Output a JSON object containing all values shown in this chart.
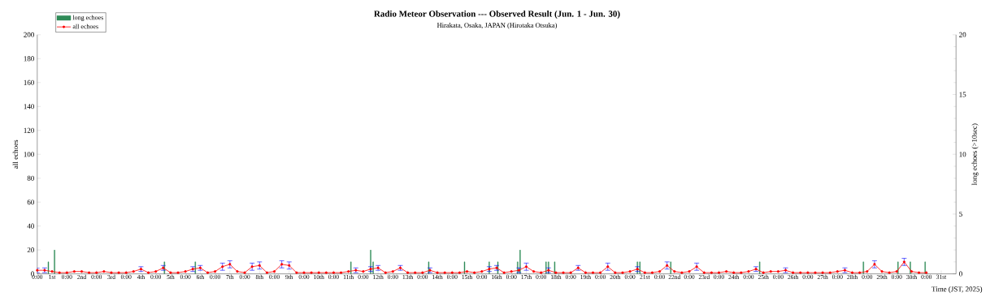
{
  "chart_data": {
    "type": "line",
    "title": "Radio Meteor Observation --- Observed Result (Jun. 1 - Jun. 30)",
    "subtitle": "Hirakata, Osaka, JAPAN (Hirotaka Otsuka)",
    "xlabel": "Time (JST, 2025)",
    "ylabel": "all echoes",
    "y2label": "long echoes (>10sec)",
    "xlim": [
      "2025-06-01T00:00",
      "2025-07-02T00:00"
    ],
    "ylim": [
      0,
      200
    ],
    "y2lim": [
      0,
      20
    ],
    "xticks": [
      {
        "value": "2025-06-01T00:00",
        "label": "0:00"
      },
      {
        "value": "2025-06-01T12:00",
        "label": "1st"
      },
      {
        "value": "2025-06-02T00:00",
        "label": "0:00"
      },
      {
        "value": "2025-06-02T12:00",
        "label": "2nd"
      },
      {
        "value": "2025-06-03T00:00",
        "label": "0:00"
      },
      {
        "value": "2025-06-03T12:00",
        "label": "3rd"
      },
      {
        "value": "2025-06-04T00:00",
        "label": "0:00"
      },
      {
        "value": "2025-06-04T12:00",
        "label": "4th"
      },
      {
        "value": "2025-06-05T00:00",
        "label": "0:00"
      },
      {
        "value": "2025-06-05T12:00",
        "label": "5th"
      },
      {
        "value": "2025-06-06T00:00",
        "label": "0:00"
      },
      {
        "value": "2025-06-06T12:00",
        "label": "6th"
      },
      {
        "value": "2025-06-07T00:00",
        "label": "0:00"
      },
      {
        "value": "2025-06-07T12:00",
        "label": "7th"
      },
      {
        "value": "2025-06-08T00:00",
        "label": "0:00"
      },
      {
        "value": "2025-06-08T12:00",
        "label": "8th"
      },
      {
        "value": "2025-06-09T00:00",
        "label": "0:00"
      },
      {
        "value": "2025-06-09T12:00",
        "label": "9th"
      },
      {
        "value": "2025-06-10T00:00",
        "label": "0:00"
      },
      {
        "value": "2025-06-10T12:00",
        "label": "10th"
      },
      {
        "value": "2025-06-11T00:00",
        "label": "0:00"
      },
      {
        "value": "2025-06-11T12:00",
        "label": "11th"
      },
      {
        "value": "2025-06-12T00:00",
        "label": "0:00"
      },
      {
        "value": "2025-06-12T12:00",
        "label": "12th"
      },
      {
        "value": "2025-06-13T00:00",
        "label": "0:00"
      },
      {
        "value": "2025-06-13T12:00",
        "label": "13th"
      },
      {
        "value": "2025-06-14T00:00",
        "label": "0:00"
      },
      {
        "value": "2025-06-14T12:00",
        "label": "14th"
      },
      {
        "value": "2025-06-15T00:00",
        "label": "0:00"
      },
      {
        "value": "2025-06-15T12:00",
        "label": "15th"
      },
      {
        "value": "2025-06-16T00:00",
        "label": "0:00"
      },
      {
        "value": "2025-06-16T12:00",
        "label": "16th"
      },
      {
        "value": "2025-06-17T00:00",
        "label": "0:00"
      },
      {
        "value": "2025-06-17T12:00",
        "label": "17th"
      },
      {
        "value": "2025-06-18T00:00",
        "label": "0:00"
      },
      {
        "value": "2025-06-18T12:00",
        "label": "18th"
      },
      {
        "value": "2025-06-19T00:00",
        "label": "0:00"
      },
      {
        "value": "2025-06-19T12:00",
        "label": "19th"
      },
      {
        "value": "2025-06-20T00:00",
        "label": "0:00"
      },
      {
        "value": "2025-06-20T12:00",
        "label": "20th"
      },
      {
        "value": "2025-06-21T00:00",
        "label": "0:00"
      },
      {
        "value": "2025-06-21T12:00",
        "label": "21st"
      },
      {
        "value": "2025-06-22T00:00",
        "label": "0:00"
      },
      {
        "value": "2025-06-22T12:00",
        "label": "22nd"
      },
      {
        "value": "2025-06-23T00:00",
        "label": "0:00"
      },
      {
        "value": "2025-06-23T12:00",
        "label": "23rd"
      },
      {
        "value": "2025-06-24T00:00",
        "label": "0:00"
      },
      {
        "value": "2025-06-24T12:00",
        "label": "24th"
      },
      {
        "value": "2025-06-25T00:00",
        "label": "0:00"
      },
      {
        "value": "2025-06-25T12:00",
        "label": "25th"
      },
      {
        "value": "2025-06-26T00:00",
        "label": "0:00"
      },
      {
        "value": "2025-06-26T12:00",
        "label": "26th"
      },
      {
        "value": "2025-06-27T00:00",
        "label": "0:00"
      },
      {
        "value": "2025-06-27T12:00",
        "label": "27th"
      },
      {
        "value": "2025-06-28T00:00",
        "label": "0:00"
      },
      {
        "value": "2025-06-28T12:00",
        "label": "28th"
      },
      {
        "value": "2025-06-29T00:00",
        "label": "0:00"
      },
      {
        "value": "2025-06-29T12:00",
        "label": "29th"
      },
      {
        "value": "2025-06-30T00:00",
        "label": "0:00"
      },
      {
        "value": "2025-06-30T12:00",
        "label": "30th"
      },
      {
        "value": "2025-07-01T00:00",
        "label": "0:00"
      },
      {
        "value": "2025-07-01T12:00",
        "label": "31st"
      }
    ],
    "yticks": [
      0,
      20,
      40,
      60,
      80,
      100,
      120,
      140,
      160,
      180,
      200
    ],
    "y2ticks": [
      0,
      5,
      10,
      15,
      20
    ],
    "legend": "top left",
    "grid": false,
    "x": [
      "2025-06-01T00:00",
      "2025-06-01T06:00",
      "2025-06-01T12:00",
      "2025-06-01T18:00",
      "2025-06-02T00:00",
      "2025-06-02T06:00",
      "2025-06-02T12:00",
      "2025-06-02T18:00",
      "2025-06-03T00:00",
      "2025-06-03T06:00",
      "2025-06-03T12:00",
      "2025-06-03T18:00",
      "2025-06-04T00:00",
      "2025-06-04T06:00",
      "2025-06-04T12:00",
      "2025-06-04T18:00",
      "2025-06-05T00:00",
      "2025-06-05T06:00",
      "2025-06-05T12:00",
      "2025-06-05T18:00",
      "2025-06-06T00:00",
      "2025-06-06T06:00",
      "2025-06-06T12:00",
      "2025-06-06T18:00",
      "2025-06-07T00:00",
      "2025-06-07T06:00",
      "2025-06-07T12:00",
      "2025-06-07T18:00",
      "2025-06-08T00:00",
      "2025-06-08T06:00",
      "2025-06-08T12:00",
      "2025-06-08T18:00",
      "2025-06-09T00:00",
      "2025-06-09T06:00",
      "2025-06-09T12:00",
      "2025-06-09T18:00",
      "2025-06-10T00:00",
      "2025-06-10T06:00",
      "2025-06-10T12:00",
      "2025-06-10T18:00",
      "2025-06-11T00:00",
      "2025-06-11T06:00",
      "2025-06-11T12:00",
      "2025-06-11T18:00",
      "2025-06-12T00:00",
      "2025-06-12T06:00",
      "2025-06-12T12:00",
      "2025-06-12T18:00",
      "2025-06-13T00:00",
      "2025-06-13T06:00",
      "2025-06-13T12:00",
      "2025-06-13T18:00",
      "2025-06-14T00:00",
      "2025-06-14T06:00",
      "2025-06-14T12:00",
      "2025-06-14T18:00",
      "2025-06-15T00:00",
      "2025-06-15T06:00",
      "2025-06-15T12:00",
      "2025-06-15T18:00",
      "2025-06-16T00:00",
      "2025-06-16T06:00",
      "2025-06-16T12:00",
      "2025-06-16T18:00",
      "2025-06-17T00:00",
      "2025-06-17T06:00",
      "2025-06-17T12:00",
      "2025-06-17T18:00",
      "2025-06-18T00:00",
      "2025-06-18T06:00",
      "2025-06-18T12:00",
      "2025-06-18T18:00",
      "2025-06-19T00:00",
      "2025-06-19T06:00",
      "2025-06-19T12:00",
      "2025-06-19T18:00",
      "2025-06-20T00:00",
      "2025-06-20T06:00",
      "2025-06-20T12:00",
      "2025-06-20T18:00",
      "2025-06-21T00:00",
      "2025-06-21T06:00",
      "2025-06-21T12:00",
      "2025-06-21T18:00",
      "2025-06-22T00:00",
      "2025-06-22T06:00",
      "2025-06-22T12:00",
      "2025-06-22T18:00",
      "2025-06-23T00:00",
      "2025-06-23T06:00",
      "2025-06-23T12:00",
      "2025-06-23T18:00",
      "2025-06-24T00:00",
      "2025-06-24T06:00",
      "2025-06-24T12:00",
      "2025-06-24T18:00",
      "2025-06-25T00:00",
      "2025-06-25T06:00",
      "2025-06-25T12:00",
      "2025-06-25T18:00",
      "2025-06-26T00:00",
      "2025-06-26T06:00",
      "2025-06-26T12:00",
      "2025-06-26T18:00",
      "2025-06-27T00:00",
      "2025-06-27T06:00",
      "2025-06-27T12:00",
      "2025-06-27T18:00",
      "2025-06-28T00:00",
      "2025-06-28T06:00",
      "2025-06-28T12:00",
      "2025-06-28T18:00",
      "2025-06-29T00:00",
      "2025-06-29T06:00",
      "2025-06-29T12:00",
      "2025-06-29T18:00",
      "2025-06-30T00:00",
      "2025-06-30T06:00",
      "2025-06-30T12:00",
      "2025-06-30T18:00",
      "2025-07-01T00:00"
    ],
    "series": [
      {
        "name": "long echoes",
        "type": "bar",
        "axis": "y2",
        "color": "#2e8b57",
        "x": [
          "2025-06-01T09:00",
          "2025-06-01T14:00",
          "2025-06-05T07:00",
          "2025-06-06T08:00",
          "2025-06-11T14:00",
          "2025-06-12T06:00",
          "2025-06-12T08:00",
          "2025-06-14T05:00",
          "2025-06-15T10:00",
          "2025-06-16T06:00",
          "2025-06-16T13:00",
          "2025-06-17T05:00",
          "2025-06-17T07:00",
          "2025-06-18T04:00",
          "2025-06-18T06:00",
          "2025-06-18T11:00",
          "2025-06-21T06:00",
          "2025-06-21T08:00",
          "2025-06-22T09:00",
          "2025-06-25T09:00",
          "2025-06-28T21:00",
          "2025-06-30T01:00",
          "2025-06-30T11:00",
          "2025-06-30T23:00"
        ],
        "values": [
          1,
          2,
          1,
          1,
          1,
          2,
          1,
          1,
          1,
          1,
          1,
          1,
          2,
          1,
          1,
          1,
          1,
          1,
          1,
          1,
          1,
          1,
          1,
          1
        ]
      },
      {
        "name": "all echoes",
        "color": "#ff0000",
        "marker": "circle",
        "line_style": "solid",
        "values": [
          3,
          3,
          2,
          1,
          1,
          2,
          2,
          1,
          1,
          2,
          1,
          1,
          1,
          2,
          4,
          1,
          2,
          5,
          1,
          1,
          2,
          4,
          5,
          1,
          2,
          6,
          8,
          2,
          1,
          6,
          7,
          1,
          2,
          8,
          7,
          1,
          1,
          1,
          1,
          1,
          1,
          1,
          2,
          3,
          2,
          4,
          5,
          1,
          2,
          5,
          1,
          1,
          1,
          3,
          1,
          1,
          1,
          1,
          2,
          1,
          2,
          4,
          5,
          1,
          2,
          3,
          6,
          2,
          1,
          3,
          1,
          1,
          1,
          5,
          1,
          1,
          1,
          6,
          1,
          1,
          2,
          4,
          1,
          1,
          2,
          7,
          2,
          1,
          2,
          6,
          1,
          1,
          1,
          2,
          1,
          1,
          2,
          4,
          1,
          2,
          2,
          3,
          1,
          1,
          1,
          1,
          1,
          1,
          2,
          3,
          1,
          1,
          2,
          8,
          2,
          1,
          2,
          10,
          2,
          1,
          1
        ],
        "errors": [
          2,
          2,
          null,
          null,
          null,
          null,
          null,
          null,
          null,
          null,
          null,
          null,
          null,
          null,
          2,
          null,
          null,
          2,
          null,
          null,
          null,
          2,
          2,
          null,
          null,
          3,
          3,
          null,
          null,
          3,
          3,
          null,
          null,
          3,
          3,
          null,
          null,
          null,
          null,
          null,
          null,
          null,
          null,
          2,
          null,
          2,
          2,
          null,
          null,
          2,
          null,
          null,
          null,
          2,
          null,
          null,
          null,
          null,
          null,
          null,
          null,
          2,
          2,
          null,
          null,
          2,
          3,
          null,
          null,
          2,
          null,
          null,
          null,
          2,
          null,
          null,
          null,
          3,
          null,
          null,
          null,
          2,
          null,
          null,
          null,
          3,
          null,
          null,
          null,
          3,
          null,
          null,
          null,
          null,
          null,
          null,
          null,
          2,
          null,
          null,
          null,
          2,
          null,
          null,
          null,
          null,
          null,
          null,
          null,
          2,
          null,
          null,
          null,
          3,
          null,
          null,
          null,
          3,
          null,
          null,
          null
        ]
      }
    ]
  }
}
